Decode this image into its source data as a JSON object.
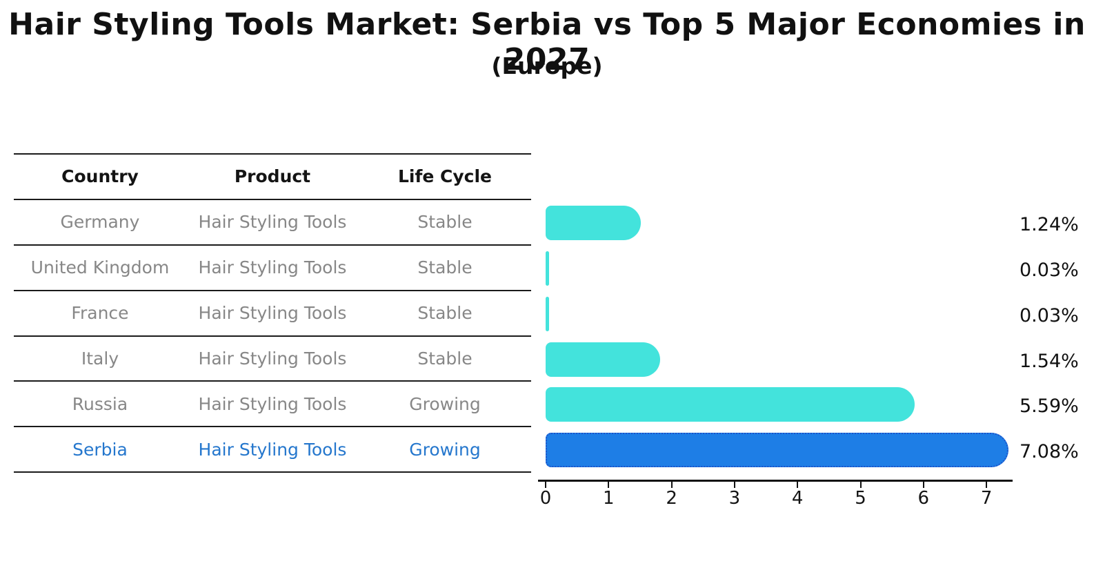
{
  "header": {
    "title": "Hair Styling Tools Market: Serbia vs Top 5 Major Economies in 2027",
    "subtitle": "(Europe)"
  },
  "colors": {
    "bar_default": "#43e3dc",
    "bar_highlight": "#1e7ee6",
    "bar_highlight_border": "#1d53c9",
    "row_text": "#878787",
    "highlight_text": "#2577cd",
    "axis": "#111111"
  },
  "table": {
    "headers": [
      "Country",
      "Product",
      "Life Cycle"
    ],
    "rows": [
      {
        "country": "Germany",
        "product": "Hair Styling Tools",
        "life_cycle": "Stable",
        "highlighted": false
      },
      {
        "country": "United Kingdom",
        "product": "Hair Styling Tools",
        "life_cycle": "Stable",
        "highlighted": false
      },
      {
        "country": "France",
        "product": "Hair Styling Tools",
        "life_cycle": "Stable",
        "highlighted": false
      },
      {
        "country": "Italy",
        "product": "Hair Styling Tools",
        "life_cycle": "Stable",
        "highlighted": false
      },
      {
        "country": "Russia",
        "product": "Hair Styling Tools",
        "life_cycle": "Growing",
        "highlighted": false
      },
      {
        "country": "Serbia",
        "product": "Hair Styling Tools",
        "life_cycle": "Growing",
        "highlighted": true
      }
    ]
  },
  "chart_data": {
    "type": "bar",
    "orientation": "horizontal",
    "title": "Hair Styling Tools Market: Serbia vs Top 5 Major Economies in 2027",
    "subtitle": "(Europe)",
    "categories": [
      "Germany",
      "United Kingdom",
      "France",
      "Italy",
      "Russia",
      "Serbia"
    ],
    "values": [
      1.24,
      0.03,
      0.03,
      1.54,
      5.59,
      7.08
    ],
    "value_labels": [
      "1.24%",
      "0.03%",
      "0.03%",
      "1.54%",
      "5.59%",
      "7.08%"
    ],
    "highlighted_category": "Serbia",
    "xlabel": "",
    "ylabel": "",
    "xlim": [
      0,
      7.4
    ],
    "x_ticks": [
      0,
      1,
      2,
      3,
      4,
      5,
      6,
      7
    ],
    "grid": false,
    "legend": false
  }
}
